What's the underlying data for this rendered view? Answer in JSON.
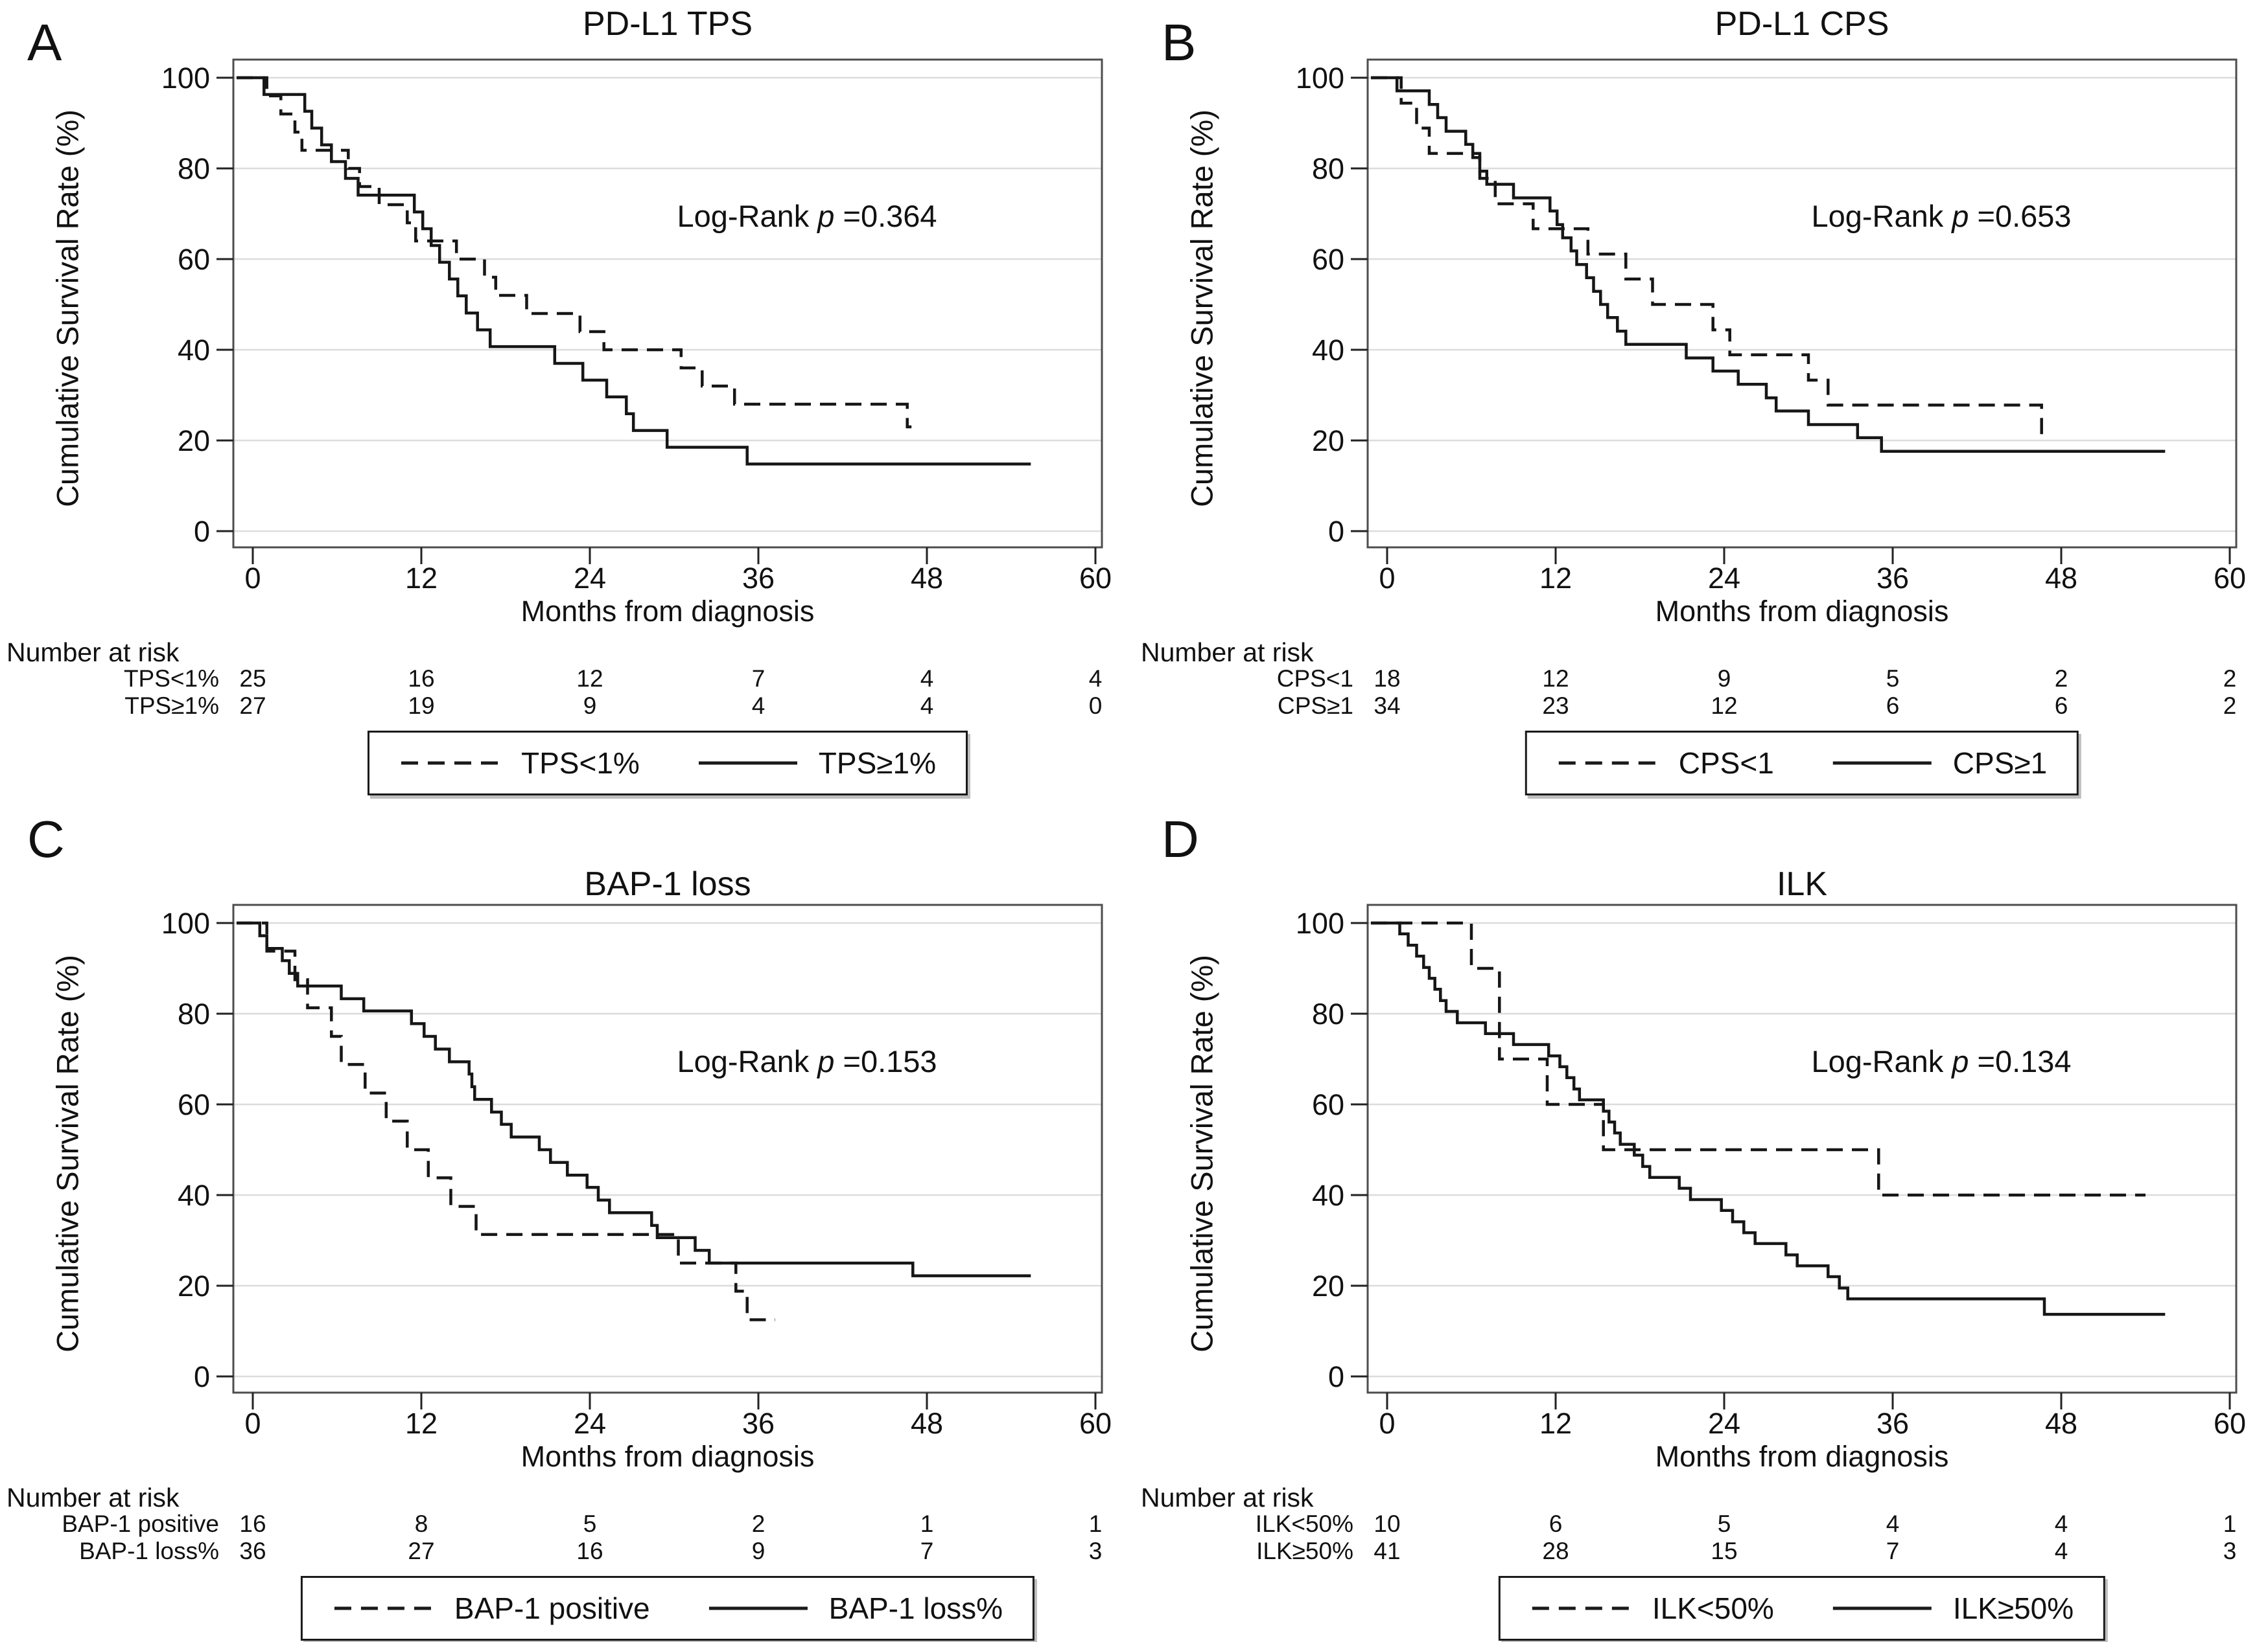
{
  "panels": [
    {
      "letter": "A",
      "logrank": {
        "label": "Log-Rank",
        "p": "p",
        "value": "=0.364"
      },
      "risk_header": "Number at risk"
    },
    {
      "letter": "B",
      "logrank": {
        "label": "Log-Rank",
        "p": "p",
        "value": "=0.653"
      },
      "risk_header": "Number at risk"
    },
    {
      "letter": "C",
      "logrank": {
        "label": "Log-Rank",
        "p": "p",
        "value": "=0.153"
      },
      "risk_header": "Number at risk"
    },
    {
      "letter": "D",
      "logrank": {
        "label": "Log-Rank",
        "p": "p",
        "value": "=0.134"
      },
      "risk_header": "Number at risk"
    }
  ],
  "chart_data": [
    {
      "type": "step",
      "title": "PD-L1 TPS",
      "xlabel": "Months from diagnosis",
      "ylabel": "Cumulative Survival Rate (%)",
      "xlim": [
        0,
        60
      ],
      "ylim": [
        0,
        100
      ],
      "xticks": [
        0,
        12,
        24,
        36,
        48,
        60
      ],
      "yticks": [
        0,
        20,
        40,
        60,
        80,
        100
      ],
      "log_rank_p": 0.364,
      "series": [
        {
          "name": "TPS<1%",
          "style": "dashed",
          "end_x": 46.9,
          "points": [
            [
              0,
              100
            ],
            [
              1,
              96
            ],
            [
              2,
              92
            ],
            [
              3,
              88
            ],
            [
              3.5,
              84
            ],
            [
              6.8,
              80
            ],
            [
              7.6,
              76
            ],
            [
              9,
              72
            ],
            [
              11,
              68
            ],
            [
              11.6,
              64
            ],
            [
              14.5,
              60
            ],
            [
              16.5,
              56
            ],
            [
              17.3,
              52
            ],
            [
              19.5,
              48
            ],
            [
              23.3,
              44
            ],
            [
              25,
              40
            ],
            [
              30.5,
              36
            ],
            [
              32,
              32
            ],
            [
              34.3,
              28
            ],
            [
              46.6,
              23
            ]
          ]
        },
        {
          "name": "TPS≥1%",
          "style": "solid",
          "end_x": 55.4,
          "points": [
            [
              0,
              100
            ],
            [
              0.8,
              96.3
            ],
            [
              3.7,
              92.6
            ],
            [
              4.2,
              88.9
            ],
            [
              4.9,
              85.2
            ],
            [
              5.6,
              81.5
            ],
            [
              6.6,
              77.8
            ],
            [
              7.5,
              74.1
            ],
            [
              11.5,
              70.4
            ],
            [
              12.1,
              66.7
            ],
            [
              12.7,
              63
            ],
            [
              13.3,
              59.3
            ],
            [
              14,
              55.6
            ],
            [
              14.6,
              51.9
            ],
            [
              15.2,
              48.1
            ],
            [
              16,
              44.4
            ],
            [
              16.9,
              40.7
            ],
            [
              21.5,
              37
            ],
            [
              23.5,
              33.3
            ],
            [
              25.2,
              29.6
            ],
            [
              26.6,
              25.9
            ],
            [
              27.1,
              22.2
            ],
            [
              29.5,
              18.5
            ],
            [
              35.2,
              14.8
            ]
          ]
        }
      ],
      "number_at_risk": {
        "times": [
          0,
          12,
          24,
          36,
          48,
          60
        ],
        "rows": [
          {
            "label": "TPS<1%",
            "counts": [
              25,
              16,
              12,
              7,
              4,
              4
            ]
          },
          {
            "label": "TPS≥1%",
            "counts": [
              27,
              19,
              9,
              4,
              4,
              0
            ]
          }
        ]
      }
    },
    {
      "type": "step",
      "title": "PD-L1 CPS",
      "xlabel": "Months from diagnosis",
      "ylabel": "Cumulative Survival Rate (%)",
      "xlim": [
        0,
        60
      ],
      "ylim": [
        0,
        100
      ],
      "xticks": [
        0,
        12,
        24,
        36,
        48,
        60
      ],
      "yticks": [
        0,
        20,
        40,
        60,
        80,
        100
      ],
      "log_rank_p": 0.653,
      "series": [
        {
          "name": "CPS<1",
          "style": "dashed",
          "end_x": 46.9,
          "points": [
            [
              0,
              100
            ],
            [
              1,
              94.4
            ],
            [
              2.1,
              88.9
            ],
            [
              3,
              83.3
            ],
            [
              6.6,
              77.8
            ],
            [
              7.7,
              72.2
            ],
            [
              10.4,
              66.7
            ],
            [
              14.3,
              61.1
            ],
            [
              17,
              55.6
            ],
            [
              18.9,
              50
            ],
            [
              23.2,
              44.4
            ],
            [
              24.4,
              38.9
            ],
            [
              30,
              33.3
            ],
            [
              31.4,
              27.8
            ],
            [
              46.6,
              20.8
            ]
          ]
        },
        {
          "name": "CPS≥1",
          "style": "solid",
          "end_x": 55.4,
          "points": [
            [
              0,
              100
            ],
            [
              0.7,
              97.1
            ],
            [
              3,
              94.1
            ],
            [
              3.6,
              91.2
            ],
            [
              4.2,
              88.2
            ],
            [
              5.6,
              85.3
            ],
            [
              6.1,
              82.4
            ],
            [
              6.6,
              79.4
            ],
            [
              7.1,
              76.5
            ],
            [
              9,
              73.5
            ],
            [
              11.6,
              70.6
            ],
            [
              12.1,
              67.6
            ],
            [
              12.5,
              64.7
            ],
            [
              13.1,
              61.8
            ],
            [
              13.5,
              58.8
            ],
            [
              14.2,
              55.9
            ],
            [
              14.7,
              52.9
            ],
            [
              15.2,
              50
            ],
            [
              15.7,
              47.1
            ],
            [
              16.4,
              44.1
            ],
            [
              17,
              41.2
            ],
            [
              21.3,
              38.2
            ],
            [
              23.2,
              35.3
            ],
            [
              25,
              32.4
            ],
            [
              27,
              29.4
            ],
            [
              27.7,
              26.5
            ],
            [
              30,
              23.5
            ],
            [
              33.5,
              20.6
            ],
            [
              35.2,
              17.6
            ]
          ]
        }
      ],
      "number_at_risk": {
        "times": [
          0,
          12,
          24,
          36,
          48,
          60
        ],
        "rows": [
          {
            "label": "CPS<1",
            "counts": [
              18,
              12,
              9,
              5,
              2,
              2
            ]
          },
          {
            "label": "CPS≥1",
            "counts": [
              34,
              23,
              12,
              6,
              6,
              2
            ]
          }
        ]
      }
    },
    {
      "type": "step",
      "title": "BAP-1 loss",
      "xlabel": "Months from diagnosis",
      "ylabel": "Cumulative Survival Rate (%)",
      "xlim": [
        0,
        60
      ],
      "ylim": [
        0,
        100
      ],
      "xticks": [
        0,
        12,
        24,
        36,
        48,
        60
      ],
      "yticks": [
        0,
        20,
        40,
        60,
        80,
        100
      ],
      "log_rank_p": 0.153,
      "series": [
        {
          "name": "BAP-1 positive",
          "style": "dashed",
          "end_x": 37.2,
          "points": [
            [
              0,
              100
            ],
            [
              1,
              93.8
            ],
            [
              3,
              87.5
            ],
            [
              3.9,
              81.3
            ],
            [
              5.6,
              75
            ],
            [
              6.3,
              68.8
            ],
            [
              8,
              62.5
            ],
            [
              9.5,
              56.3
            ],
            [
              11,
              50
            ],
            [
              12.5,
              43.8
            ],
            [
              14.1,
              37.5
            ],
            [
              15.9,
              31.3
            ],
            [
              30.3,
              25
            ],
            [
              34.4,
              18.8
            ],
            [
              35.2,
              12.5
            ]
          ]
        },
        {
          "name": "BAP-1 loss%",
          "style": "solid",
          "end_x": 55.4,
          "points": [
            [
              0,
              100
            ],
            [
              0.5,
              97.2
            ],
            [
              1,
              94.4
            ],
            [
              2.1,
              91.7
            ],
            [
              2.6,
              88.9
            ],
            [
              3.2,
              86.1
            ],
            [
              6.3,
              83.3
            ],
            [
              7.9,
              80.6
            ],
            [
              11.3,
              77.8
            ],
            [
              12.2,
              75
            ],
            [
              13,
              72.2
            ],
            [
              14,
              69.4
            ],
            [
              15.4,
              66.7
            ],
            [
              15.6,
              63.9
            ],
            [
              15.8,
              61.1
            ],
            [
              17,
              58.3
            ],
            [
              17.7,
              55.6
            ],
            [
              18.4,
              52.8
            ],
            [
              20.4,
              50
            ],
            [
              21.2,
              47.2
            ],
            [
              22.4,
              44.4
            ],
            [
              23.8,
              41.7
            ],
            [
              24.6,
              38.9
            ],
            [
              25.4,
              36.1
            ],
            [
              28.4,
              33.3
            ],
            [
              28.8,
              30.6
            ],
            [
              31.5,
              27.8
            ],
            [
              32.5,
              25
            ],
            [
              47,
              22.2
            ]
          ]
        }
      ],
      "number_at_risk": {
        "times": [
          0,
          12,
          24,
          36,
          48,
          60
        ],
        "rows": [
          {
            "label": "BAP-1 positive",
            "counts": [
              16,
              8,
              5,
              2,
              1,
              1
            ]
          },
          {
            "label": "BAP-1 loss%",
            "counts": [
              36,
              27,
              16,
              9,
              7,
              3
            ]
          }
        ]
      }
    },
    {
      "type": "step",
      "title": "ILK",
      "xlabel": "Months from diagnosis",
      "ylabel": "Cumulative Survival Rate (%)",
      "xlim": [
        0,
        60
      ],
      "ylim": [
        0,
        100
      ],
      "xticks": [
        0,
        12,
        24,
        36,
        48,
        60
      ],
      "yticks": [
        0,
        20,
        40,
        60,
        80,
        100
      ],
      "log_rank_p": 0.134,
      "series": [
        {
          "name": "ILK<50%",
          "style": "dashed",
          "end_x": 54,
          "points": [
            [
              0,
              100
            ],
            [
              6,
              90
            ],
            [
              8,
              70
            ],
            [
              11.4,
              60
            ],
            [
              15.4,
              50
            ],
            [
              35,
              40
            ]
          ]
        },
        {
          "name": "ILK≥50%",
          "style": "solid",
          "end_x": 55.4,
          "points": [
            [
              0,
              100
            ],
            [
              0.9,
              97.6
            ],
            [
              1.5,
              95.1
            ],
            [
              2.1,
              92.7
            ],
            [
              2.6,
              90.2
            ],
            [
              3,
              87.8
            ],
            [
              3.4,
              85.4
            ],
            [
              3.8,
              82.9
            ],
            [
              4.2,
              80.5
            ],
            [
              5,
              78
            ],
            [
              7,
              75.6
            ],
            [
              9,
              73.2
            ],
            [
              11.5,
              70.7
            ],
            [
              12.3,
              68.3
            ],
            [
              12.8,
              65.9
            ],
            [
              13.3,
              63.4
            ],
            [
              13.7,
              61
            ],
            [
              15.4,
              58.5
            ],
            [
              15.8,
              56.1
            ],
            [
              16.2,
              53.7
            ],
            [
              16.6,
              51.2
            ],
            [
              17.6,
              48.8
            ],
            [
              18.2,
              46.3
            ],
            [
              18.7,
              43.9
            ],
            [
              20.8,
              41.5
            ],
            [
              21.6,
              39
            ],
            [
              23.8,
              36.6
            ],
            [
              24.6,
              34.1
            ],
            [
              25.4,
              31.7
            ],
            [
              26.2,
              29.3
            ],
            [
              28.4,
              26.8
            ],
            [
              29.2,
              24.4
            ],
            [
              31.4,
              22
            ],
            [
              32.2,
              19.5
            ],
            [
              32.8,
              17.1
            ],
            [
              46.8,
              13.7
            ]
          ]
        }
      ],
      "number_at_risk": {
        "times": [
          0,
          12,
          24,
          36,
          48,
          60
        ],
        "rows": [
          {
            "label": "ILK<50%",
            "counts": [
              10,
              6,
              5,
              4,
              4,
              1
            ]
          },
          {
            "label": "ILK≥50%",
            "counts": [
              41,
              28,
              15,
              7,
              4,
              3
            ]
          }
        ]
      }
    }
  ]
}
